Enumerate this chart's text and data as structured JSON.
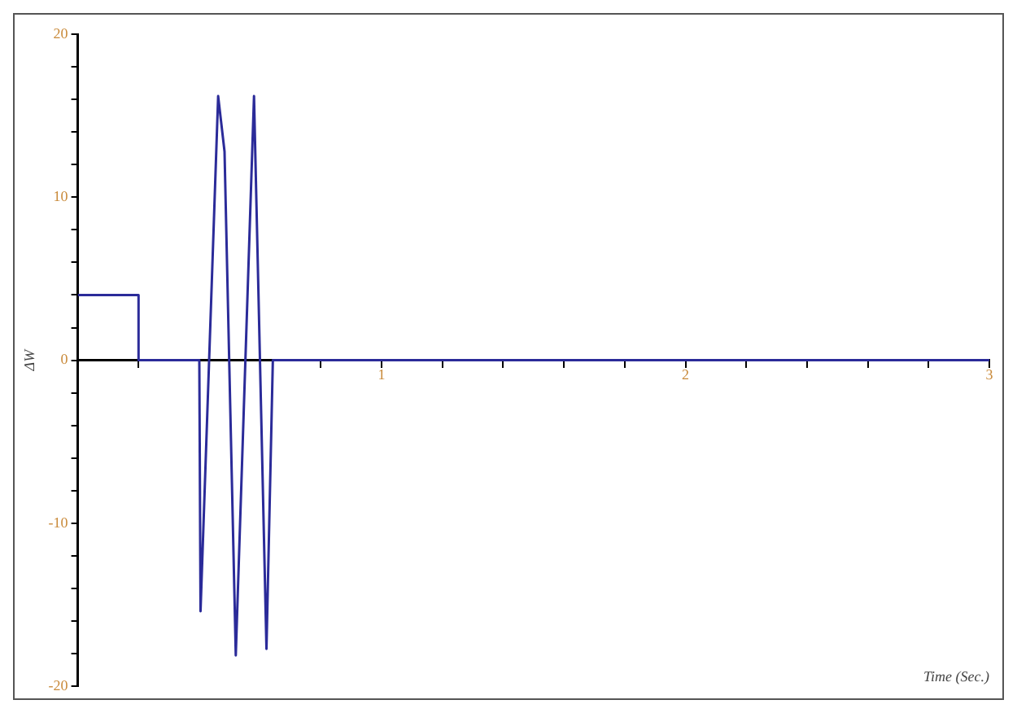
{
  "chart_data": {
    "type": "line",
    "xlabel": "Time (Sec.)",
    "ylabel": "ΔW",
    "x": [
      0,
      0.2,
      0.2,
      0.4,
      0.404,
      0.462,
      0.483,
      0.52,
      0.58,
      0.621,
      0.642,
      3
    ],
    "series": [
      {
        "color": "#2b2b99",
        "values": [
          4,
          4,
          0,
          0,
          -15.4,
          16.2,
          12.8,
          -18.1,
          16.2,
          -17.7,
          0,
          0
        ]
      }
    ],
    "xlim": [
      0,
      3
    ],
    "ylim": [
      -20,
      20
    ],
    "xticks": [
      {
        "value": 0.2,
        "label": null
      },
      {
        "value": 0.4,
        "label": null
      },
      {
        "value": 0.6,
        "label": null
      },
      {
        "value": 0.8,
        "label": null
      },
      1,
      {
        "value": 1.2,
        "label": null
      },
      {
        "value": 1.4,
        "label": null
      },
      {
        "value": 1.6,
        "label": null
      },
      {
        "value": 1.8,
        "label": null
      },
      2,
      {
        "value": 2.2,
        "label": null
      },
      {
        "value": 2.4,
        "label": null
      },
      {
        "value": 2.6,
        "label": null
      },
      {
        "value": 2.8,
        "label": null
      },
      3
    ],
    "yticks": [
      -20,
      {
        "value": -18,
        "label": null
      },
      {
        "value": -16,
        "label": null
      },
      {
        "value": -14,
        "label": null
      },
      {
        "value": -12,
        "label": null
      },
      -10,
      {
        "value": -8,
        "label": null
      },
      {
        "value": -6,
        "label": null
      },
      {
        "value": -4,
        "label": null
      },
      {
        "value": -2,
        "label": null
      },
      0,
      {
        "value": 2,
        "label": null
      },
      {
        "value": 4,
        "label": null
      },
      {
        "value": 6,
        "label": null
      },
      {
        "value": 8,
        "label": null
      },
      10,
      {
        "value": 12,
        "label": null
      },
      {
        "value": 14,
        "label": null
      },
      {
        "value": 16,
        "label": null
      },
      {
        "value": 18,
        "label": null
      },
      20
    ],
    "grid": false,
    "legend": false,
    "marker": "none",
    "line_style": "solid"
  }
}
